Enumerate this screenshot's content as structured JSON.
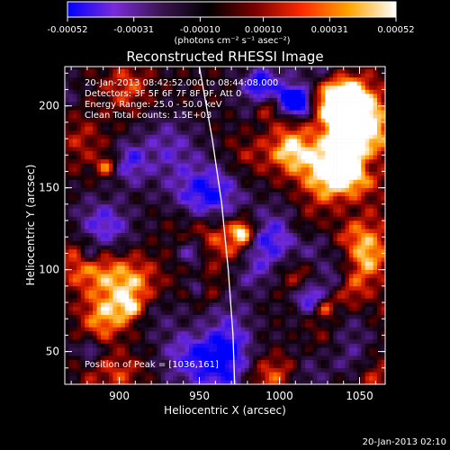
{
  "colorbar": {
    "tick_labels": [
      "-0.00052",
      "-0.00031",
      "-0.00010",
      "0.00010",
      "0.00031",
      "0.00052"
    ],
    "unit_label": "(photons cm⁻² s⁻¹ asec⁻²)",
    "range": [
      -0.00052,
      0.00052
    ],
    "colors": [
      "#0000ff",
      "#7a2bd8",
      "#3a1550",
      "#000000",
      "#7a0000",
      "#ff2a00",
      "#ffa500",
      "#ffffff"
    ]
  },
  "chart_data": {
    "type": "heatmap",
    "title": "Reconstructed RHESSI Image",
    "xlabel": "Heliocentric X (arcsec)",
    "ylabel": "Heliocentric Y (arcsec)",
    "xlim": [
      866,
      1066
    ],
    "ylim": [
      30,
      224
    ],
    "x_ticks": [
      900,
      950,
      1000,
      1050
    ],
    "y_ticks": [
      50,
      100,
      150,
      200
    ],
    "annotations": [
      "20-Jan-2013 08:42:52.000 to 08:44:08.000",
      "Detectors: 3F 5F 6F 7F 8F 9F, Att 0",
      "Energy Range: 25.0 - 50.0 keV",
      "Clean    Total counts: 1.5E+03"
    ],
    "peak_label": "Position of Peak = [1036,161]",
    "peak": [
      1036,
      161
    ],
    "limb_curve": [
      [
        950,
        224
      ],
      [
        958,
        180
      ],
      [
        964,
        140
      ],
      [
        968,
        100
      ],
      [
        971,
        60
      ],
      [
        972,
        30
      ]
    ]
  },
  "footer": {
    "timestamp": "20-Jan-2013 02:10"
  }
}
